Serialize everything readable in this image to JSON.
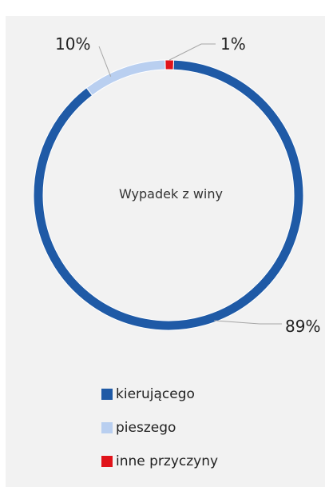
{
  "chart_data": {
    "type": "pie",
    "donut": true,
    "center_label": "Wypadek z winy",
    "slices": [
      {
        "name": "kierującego",
        "value": 89,
        "label": "89%",
        "color": "#1f5aa6"
      },
      {
        "name": "pieszego",
        "value": 10,
        "label": "10%",
        "color": "#b9cff0"
      },
      {
        "name": "inne przyczyny",
        "value": 1,
        "label": "1%",
        "color": "#e0131a"
      }
    ],
    "legend_position": "bottom"
  }
}
